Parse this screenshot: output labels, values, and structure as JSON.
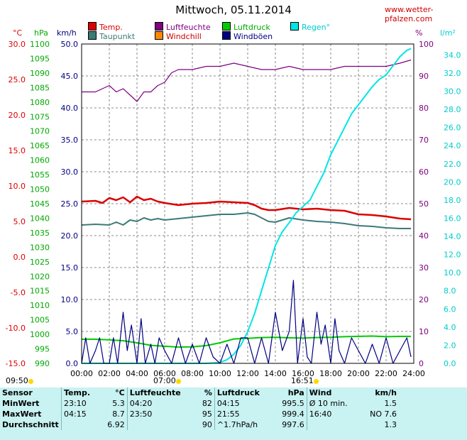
{
  "site_url": "www.wetter-pfalzen.com",
  "title": "Mittwoch, 05.11.2014",
  "legend": [
    {
      "label": "Temp.",
      "color": "#dd0000"
    },
    {
      "label": "Luftfeuchte",
      "color": "#800080"
    },
    {
      "label": "Luftdruck",
      "color": "#00cc00"
    },
    {
      "label": "Regen°",
      "color": "#00e5e5"
    },
    {
      "label": "Taupunkt",
      "color": "#3c7a78"
    },
    {
      "label": "Windchill",
      "color": "#ff8800"
    },
    {
      "label": "Windböen",
      "color": "#000080"
    }
  ],
  "axis_units": {
    "temp": "°C",
    "pressure": "hPa",
    "wind": "km/h",
    "humidity": "%",
    "rain": "l/m²"
  },
  "axis_colors": {
    "temp": "#dd0000",
    "pressure": "#00aa00",
    "wind": "#000080",
    "humidity": "#800080",
    "rain": "#00cccc"
  },
  "sun_markers": {
    "sunrise": "07:00",
    "sunset": "16:51",
    "last": "09:50"
  },
  "chart_data": {
    "type": "line",
    "title": "Mittwoch, 05.11.2014",
    "x_labels": [
      "00:00",
      "02:00",
      "04:00",
      "06:00",
      "08:00",
      "10:00",
      "12:00",
      "14:00",
      "16:00",
      "18:00",
      "20:00",
      "22:00",
      "24:00"
    ],
    "xlim": [
      0,
      24
    ],
    "grid": true,
    "axes": {
      "temp": {
        "unit": "°C",
        "range": [
          -15,
          30
        ],
        "ticks": [
          30.0,
          25.0,
          20.0,
          15.0,
          10.0,
          5.0,
          0.0,
          -5.0,
          -10.0,
          -15.0
        ]
      },
      "pressure": {
        "unit": "hPa",
        "range": [
          990,
          1100
        ],
        "ticks": [
          1100,
          1095,
          1090,
          1085,
          1080,
          1075,
          1070,
          1065,
          1060,
          1055,
          1050,
          1045,
          1040,
          1035,
          1030,
          1025,
          1020,
          1015,
          1010,
          1005,
          1000,
          995,
          990
        ]
      },
      "wind": {
        "unit": "km/h",
        "range": [
          0,
          50
        ],
        "ticks": [
          50.0,
          45.0,
          40.0,
          35.0,
          30.0,
          25.0,
          20.0,
          15.0,
          10.0,
          5.0,
          0.0
        ]
      },
      "humidity": {
        "unit": "%",
        "range": [
          0,
          100
        ],
        "ticks": [
          100,
          90,
          80,
          70,
          60,
          50,
          40,
          30,
          20,
          10,
          0
        ]
      },
      "rain": {
        "unit": "l/m²",
        "range": [
          0,
          35.2
        ],
        "ticks": [
          34.0,
          32.0,
          30.0,
          28.0,
          26.0,
          24.0,
          22.0,
          20.0,
          18.0,
          16.0,
          14.0,
          12.0,
          10.0,
          8.0,
          6.0,
          4.0,
          2.0,
          0.0
        ]
      }
    },
    "series": [
      {
        "name": "Temp.",
        "axis": "temp",
        "color": "#dd0000",
        "x": [
          0,
          1,
          1.5,
          2,
          2.5,
          3,
          3.5,
          4,
          4.5,
          5,
          5.5,
          6,
          7,
          8,
          9,
          10,
          11,
          12,
          12.5,
          13,
          13.5,
          14,
          15,
          16,
          17,
          18,
          19,
          20,
          21,
          22,
          23,
          23.8
        ],
        "y": [
          7.8,
          7.9,
          7.6,
          8.3,
          8.0,
          8.4,
          7.7,
          8.5,
          8.0,
          8.2,
          7.8,
          7.6,
          7.3,
          7.5,
          7.6,
          7.8,
          7.7,
          7.6,
          7.3,
          6.8,
          6.6,
          6.6,
          6.9,
          6.7,
          6.8,
          6.6,
          6.5,
          6.0,
          5.9,
          5.7,
          5.4,
          5.3
        ]
      },
      {
        "name": "Taupunkt",
        "axis": "temp",
        "color": "#3c7a78",
        "x": [
          0,
          1,
          2,
          2.5,
          3,
          3.5,
          4,
          4.5,
          5,
          5.5,
          6,
          7,
          8,
          9,
          10,
          11,
          12,
          12.5,
          13,
          13.5,
          14,
          15,
          16,
          17,
          18,
          19,
          20,
          21,
          22,
          23,
          23.8
        ],
        "y": [
          4.5,
          4.6,
          4.5,
          4.9,
          4.5,
          5.2,
          5.0,
          5.5,
          5.2,
          5.4,
          5.2,
          5.4,
          5.6,
          5.8,
          6.0,
          6.0,
          6.2,
          6.0,
          5.5,
          5.0,
          4.9,
          5.5,
          5.2,
          5.0,
          4.9,
          4.7,
          4.4,
          4.3,
          4.1,
          4.0,
          4.0
        ]
      },
      {
        "name": "Luftfeuchte",
        "axis": "humidity",
        "color": "#800080",
        "x": [
          0,
          1,
          1.5,
          2,
          2.5,
          3,
          3.5,
          4,
          4.5,
          5,
          5.5,
          6,
          6.5,
          7,
          8,
          9,
          10,
          11,
          12,
          13,
          14,
          15,
          16,
          17,
          18,
          19,
          20,
          21,
          22,
          23,
          23.8
        ],
        "y": [
          85,
          85,
          86,
          87,
          85,
          86,
          84,
          82,
          85,
          85,
          87,
          88,
          91,
          92,
          92,
          93,
          93,
          94,
          93,
          92,
          92,
          93,
          92,
          92,
          92,
          93,
          93,
          93,
          93,
          94,
          95
        ]
      },
      {
        "name": "Luftdruck",
        "axis": "pressure",
        "color": "#00cc00",
        "x": [
          0,
          1,
          2,
          3,
          4,
          5,
          6,
          7,
          8,
          9,
          10,
          11,
          12,
          13,
          14,
          15,
          16,
          17,
          18,
          19,
          20,
          21,
          22,
          23,
          23.8
        ],
        "y": [
          998.3,
          998.3,
          998.1,
          997.8,
          997.1,
          996.2,
          995.9,
          995.6,
          995.7,
          996.1,
          997.1,
          998.4,
          998.6,
          998.9,
          999.0,
          998.8,
          998.7,
          998.9,
          999.0,
          999.2,
          999.3,
          999.4,
          999.2,
          999.3,
          999.3
        ]
      },
      {
        "name": "Regen°",
        "axis": "rain",
        "color": "#00e5e5",
        "x": [
          0,
          1,
          2,
          3,
          4,
          5,
          6,
          7,
          8,
          9,
          10,
          10.5,
          11,
          11.5,
          12,
          12.5,
          13,
          13.5,
          14,
          14.5,
          15,
          15.5,
          16,
          16.5,
          17,
          17.5,
          18,
          18.5,
          19,
          19.5,
          20,
          20.5,
          21,
          21.5,
          22,
          22.5,
          23,
          23.5,
          23.8
        ],
        "y": [
          0,
          0,
          0,
          0,
          0,
          0,
          0,
          0,
          0,
          0,
          0.1,
          0.4,
          1.0,
          2.0,
          3.5,
          5.5,
          8.0,
          10.5,
          13.0,
          14.5,
          15.5,
          16.6,
          17.3,
          18.0,
          19.5,
          21.0,
          23.0,
          24.5,
          26.0,
          27.5,
          28.5,
          29.5,
          30.5,
          31.3,
          31.8,
          32.8,
          33.8,
          34.5,
          34.7
        ]
      },
      {
        "name": "Windböen",
        "axis": "wind",
        "color": "#000080",
        "x": [
          0,
          0.3,
          0.6,
          1,
          1.3,
          1.6,
          2,
          2.3,
          2.6,
          3,
          3.3,
          3.6,
          4,
          4.3,
          4.6,
          5,
          5.3,
          5.6,
          6,
          6.5,
          7,
          7.5,
          8,
          8.5,
          9,
          9.5,
          10,
          10.5,
          11,
          11.5,
          12,
          12.5,
          13,
          13.5,
          14,
          14.5,
          15,
          15.3,
          15.6,
          16,
          16.3,
          16.6,
          17,
          17.3,
          17.6,
          18,
          18.3,
          18.6,
          19,
          19.5,
          20,
          20.5,
          21,
          21.5,
          22,
          22.5,
          23,
          23.5,
          23.8
        ],
        "y": [
          0,
          4,
          0,
          2,
          4,
          0,
          0,
          4,
          0,
          8,
          2,
          6,
          0,
          7,
          0,
          3,
          0,
          4,
          2,
          0,
          4,
          0,
          3,
          0,
          4,
          1,
          0,
          3,
          0,
          4,
          4,
          0,
          4,
          0,
          8,
          2,
          5,
          13,
          0,
          7,
          1,
          0,
          8,
          3,
          6,
          0,
          7,
          2,
          0,
          4,
          2,
          0,
          3,
          0,
          4,
          0,
          2,
          4,
          1
        ]
      }
    ]
  },
  "stats": {
    "headers": [
      "Sensor",
      "Temp.",
      "°C",
      "Luftfeuchte",
      "%",
      "Luftdruck",
      "hPa",
      "Wind",
      "km/h"
    ],
    "rows": [
      [
        "MinWert",
        "23:10",
        "5.3",
        "04:20",
        "82",
        "04:15",
        "995.5",
        "Ø 10 min.",
        "1.5"
      ],
      [
        "MaxWert",
        "04:15",
        "8.7",
        "23:50",
        "95",
        "21:55",
        "999.4",
        "16:40",
        "NO 7.6"
      ],
      [
        "Durchschnitt",
        "",
        "6.92",
        "",
        "90",
        "^1.7hPa/h",
        "997.6",
        "",
        "1.3"
      ]
    ]
  }
}
